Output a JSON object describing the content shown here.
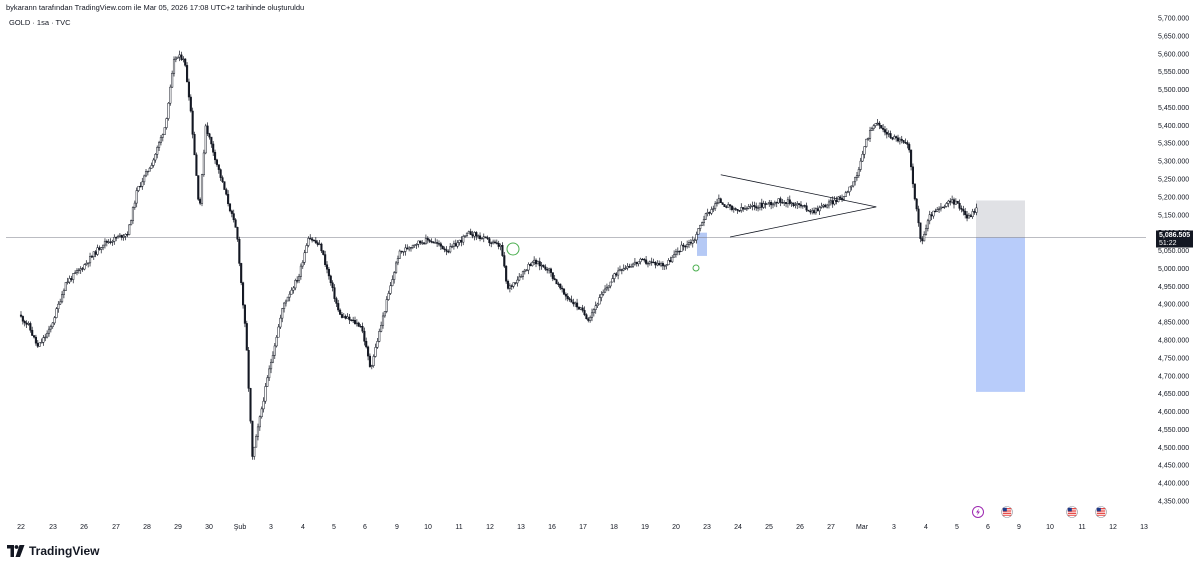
{
  "header": {
    "attribution": "bykarann tarafından TradingView.com ile Mar 05, 2026 17:08 UTC+2 tarihinde oluşturuldu",
    "symbol": "GOLD · 1sa · TVC"
  },
  "footer": {
    "brand": "TradingView"
  },
  "chart_data": {
    "type": "candlestick",
    "title": "GOLD · 1sa · TVC",
    "y_axis_ticks": [
      "5,700.000",
      "5,650.000",
      "5,600.000",
      "5,550.000",
      "5,500.000",
      "5,450.000",
      "5,400.000",
      "5,350.000",
      "5,300.000",
      "5,250.000",
      "5,200.000",
      "5,150.000",
      "5,100.000",
      "5,050.000",
      "5,000.000",
      "4,950.000",
      "4,900.000",
      "4,850.000",
      "4,800.000",
      "4,750.000",
      "4,700.000",
      "4,650.000",
      "4,600.000",
      "4,550.000",
      "4,500.000",
      "4,450.000",
      "4,400.000",
      "4,350.000"
    ],
    "y_ticks_values": [
      5700,
      5650,
      5600,
      5550,
      5500,
      5450,
      5400,
      5350,
      5300,
      5250,
      5200,
      5150,
      5100,
      5050,
      5000,
      4950,
      4900,
      4850,
      4800,
      4750,
      4700,
      4650,
      4600,
      4550,
      4500,
      4450,
      4400,
      4350
    ],
    "ylim": [
      4330,
      5710
    ],
    "x_axis_ticks": [
      "22",
      "23",
      "26",
      "27",
      "28",
      "29",
      "30",
      "Şub",
      "3",
      "4",
      "5",
      "6",
      "9",
      "10",
      "11",
      "12",
      "13",
      "16",
      "17",
      "18",
      "19",
      "20",
      "23",
      "24",
      "25",
      "26",
      "27",
      "Mar",
      "3",
      "4",
      "5",
      "6",
      "9",
      "10",
      "11",
      "12",
      "13"
    ],
    "price_path": [
      [
        0,
        4870
      ],
      [
        0.3,
        4840
      ],
      [
        0.6,
        4780
      ],
      [
        1,
        4830
      ],
      [
        1.5,
        4960
      ],
      [
        2,
        5000
      ],
      [
        2.3,
        5030
      ],
      [
        2.7,
        5070
      ],
      [
        3,
        5080
      ],
      [
        3.5,
        5100
      ],
      [
        3.8,
        5220
      ],
      [
        4.3,
        5300
      ],
      [
        4.7,
        5400
      ],
      [
        5,
        5590
      ],
      [
        5.3,
        5590
      ],
      [
        5.5,
        5460
      ],
      [
        5.8,
        5160
      ],
      [
        6,
        5400
      ],
      [
        6.5,
        5250
      ],
      [
        7,
        5100
      ],
      [
        7.3,
        4800
      ],
      [
        7.5,
        4470
      ],
      [
        8,
        4700
      ],
      [
        8.5,
        4900
      ],
      [
        9,
        4980
      ],
      [
        9.3,
        5090
      ],
      [
        9.7,
        5060
      ],
      [
        10.3,
        4870
      ],
      [
        11,
        4840
      ],
      [
        11.3,
        4720
      ],
      [
        11.8,
        4900
      ],
      [
        12.2,
        5040
      ],
      [
        12.7,
        5070
      ],
      [
        13.2,
        5080
      ],
      [
        13.8,
        5050
      ],
      [
        14.5,
        5100
      ],
      [
        15,
        5080
      ],
      [
        15.5,
        5060
      ],
      [
        15.7,
        4940
      ],
      [
        16,
        4970
      ],
      [
        16.5,
        5020
      ],
      [
        17,
        5000
      ],
      [
        17.5,
        4930
      ],
      [
        18,
        4890
      ],
      [
        18.3,
        4860
      ],
      [
        18.7,
        4920
      ],
      [
        19.3,
        5000
      ],
      [
        20,
        5020
      ],
      [
        20.8,
        5010
      ],
      [
        21.3,
        5060
      ],
      [
        21.7,
        5080
      ],
      [
        22,
        5140
      ],
      [
        22.5,
        5190
      ],
      [
        23,
        5160
      ],
      [
        23.5,
        5170
      ],
      [
        24,
        5180
      ],
      [
        24.5,
        5190
      ],
      [
        25,
        5180
      ],
      [
        25.5,
        5160
      ],
      [
        26,
        5180
      ],
      [
        26.5,
        5200
      ],
      [
        27,
        5270
      ],
      [
        27.2,
        5350
      ],
      [
        27.5,
        5410
      ],
      [
        28,
        5370
      ],
      [
        28.3,
        5360
      ],
      [
        28.6,
        5340
      ],
      [
        28.8,
        5200
      ],
      [
        29,
        5070
      ],
      [
        29.3,
        5150
      ],
      [
        29.7,
        5170
      ],
      [
        30,
        5190
      ],
      [
        30.3,
        5170
      ],
      [
        30.5,
        5140
      ],
      [
        30.8,
        5170
      ],
      [
        31,
        5090
      ]
    ],
    "annotations": {
      "current_price": "5,086.505",
      "countdown": "51:22",
      "triangle_upper": [
        [
          22.5,
          5262
        ],
        [
          27.5,
          5172
        ]
      ],
      "triangle_lower": [
        [
          22.8,
          5088
        ],
        [
          27.5,
          5172
        ]
      ],
      "short_position": {
        "entry": 5086.5,
        "stop": 5190,
        "target": 4655
      },
      "highlight_zone": {
        "from": 5100,
        "to": 5035
      }
    },
    "event_markers": [
      "lightning",
      "us-flag",
      "us-flag",
      "us-flag"
    ],
    "colors": {
      "candle": "#131722",
      "stop_zone": "#e0e1e5",
      "target_zone": "#b8ccfa",
      "highlight": "#b5c9f5",
      "accent_circle": "#4caf50",
      "earnings_marker": "#9c27b0",
      "flag_red": "#e53935",
      "flag_blue": "#1e3a8a"
    }
  }
}
